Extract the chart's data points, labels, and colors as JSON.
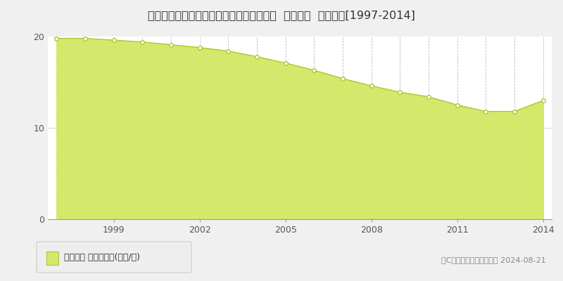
{
  "title": "福島県いわき市泉玉露６丁目１８番１４外  地価公示  地価推移[1997-2014]",
  "years": [
    1997,
    1998,
    1999,
    2000,
    2001,
    2002,
    2003,
    2004,
    2005,
    2006,
    2007,
    2008,
    2009,
    2010,
    2011,
    2012,
    2013,
    2014
  ],
  "values": [
    19.8,
    19.8,
    19.6,
    19.4,
    19.1,
    18.8,
    18.4,
    17.8,
    17.1,
    16.3,
    15.4,
    14.6,
    13.9,
    13.4,
    12.5,
    11.8,
    11.8,
    13.0
  ],
  "fill_color": "#d4e96b",
  "line_color": "#a8c832",
  "marker_color": "#ffffff",
  "marker_edge_color": "#a8c832",
  "grid_color": "#bbbbbb",
  "bg_color": "#f0f0f0",
  "plot_bg_color": "#ffffff",
  "ylim": [
    0,
    20
  ],
  "yticks": [
    0,
    10,
    20
  ],
  "xtick_years": [
    1999,
    2002,
    2005,
    2008,
    2011,
    2014
  ],
  "legend_label": "地価公示 平均坪単価(万円/坪)",
  "copyright_text": "（C）土地価格ドットコム 2024-08-21",
  "title_fontsize": 11.5,
  "tick_fontsize": 9,
  "legend_fontsize": 9,
  "copyright_fontsize": 8
}
